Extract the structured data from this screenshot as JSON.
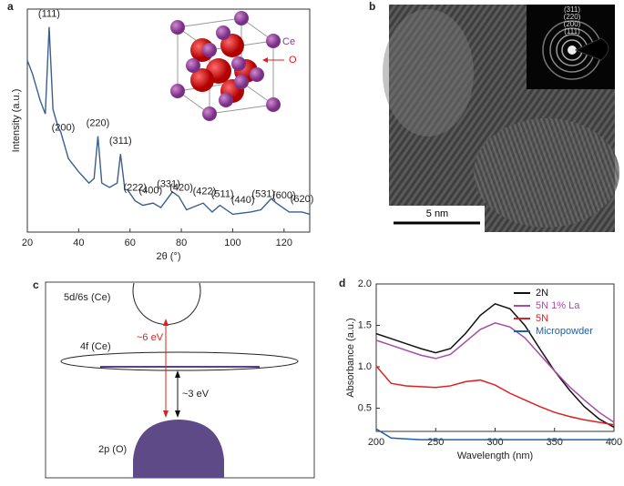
{
  "chart_data": [
    {
      "type": "line",
      "panel_label": "a",
      "xlabel": "2θ (°)",
      "ylabel": "Intensity (a.u.)",
      "x": [
        20,
        22,
        25,
        27,
        28.5,
        30,
        32,
        33,
        34,
        36,
        40,
        44,
        46,
        47.5,
        49,
        52,
        55,
        56.3,
        58,
        59,
        62,
        65,
        69,
        72,
        76.5,
        79,
        82,
        88.5,
        92,
        95,
        100,
        107,
        111,
        115,
        117,
        122,
        127,
        130
      ],
      "series": [
        {
          "color": "#3b5f8c",
          "values": [
            77,
            71,
            59,
            53,
            92,
            55,
            47,
            45,
            41,
            33,
            27,
            22,
            24,
            43,
            22,
            20,
            22,
            35,
            19,
            19,
            14,
            12,
            13,
            11,
            18,
            16,
            10,
            13,
            9,
            12,
            8,
            9,
            10,
            15,
            13,
            9,
            9,
            8
          ]
        }
      ],
      "xlim": [
        20,
        130
      ],
      "ylim": [
        0,
        100
      ],
      "xticks": [
        20,
        40,
        60,
        80,
        100,
        120
      ],
      "annotations": [
        {
          "text": "(111)",
          "x": 28.5
        },
        {
          "text": "(200)",
          "x": 34
        },
        {
          "text": "(220)",
          "x": 47.5
        },
        {
          "text": "(311)",
          "x": 56.3
        },
        {
          "text": "(222)",
          "x": 62
        },
        {
          "text": "(400)",
          "x": 68
        },
        {
          "text": "(331)",
          "x": 75
        },
        {
          "text": "(420)",
          "x": 80
        },
        {
          "text": "(422)",
          "x": 89
        },
        {
          "text": "(511)",
          "x": 96
        },
        {
          "text": "(440)",
          "x": 104
        },
        {
          "text": "(531)",
          "x": 112
        },
        {
          "text": "(600)",
          "x": 120
        },
        {
          "text": "(620)",
          "x": 127
        }
      ],
      "inset_labels": {
        "ce": "Ce",
        "o": "O"
      }
    },
    {
      "type": "line",
      "panel_label": "d",
      "xlabel": "Wavelength (nm)",
      "ylabel": "Absorbance (a.u.)",
      "x": [
        200,
        212.5,
        225,
        237.5,
        250,
        262.5,
        275,
        287.5,
        300,
        312.5,
        325,
        337.5,
        350,
        362.5,
        375,
        387.5,
        400
      ],
      "series": [
        {
          "name": "2N",
          "color": "#111111",
          "values": [
            1.4,
            1.34,
            1.28,
            1.22,
            1.17,
            1.22,
            1.4,
            1.62,
            1.76,
            1.7,
            1.5,
            1.22,
            0.95,
            0.72,
            0.52,
            0.37,
            0.27
          ]
        },
        {
          "name": "5N 1% La",
          "color": "#a64ca6",
          "values": [
            1.32,
            1.26,
            1.2,
            1.14,
            1.1,
            1.15,
            1.3,
            1.45,
            1.53,
            1.48,
            1.35,
            1.15,
            0.95,
            0.76,
            0.6,
            0.45,
            0.33
          ]
        },
        {
          "name": "5N",
          "color": "#e02020",
          "values": [
            1.01,
            0.8,
            0.77,
            0.76,
            0.75,
            0.77,
            0.82,
            0.84,
            0.78,
            0.68,
            0.6,
            0.52,
            0.45,
            0.4,
            0.36,
            0.33,
            0.3
          ]
        },
        {
          "name": "Micropowder",
          "color": "#1f5fa8",
          "values": [
            0.25,
            0.14,
            0.13,
            0.12,
            0.12,
            0.12,
            0.12,
            0.12,
            0.12,
            0.12,
            0.12,
            0.12,
            0.12,
            0.12,
            0.12,
            0.12,
            0.12
          ]
        }
      ],
      "xlim": [
        200,
        400
      ],
      "ylim": [
        0.22,
        2.0
      ],
      "xticks": [
        200,
        250,
        300,
        350,
        400
      ],
      "yticks": [
        0.5,
        {
          "value": 1.0,
          "label": "1.0"
        },
        1.5,
        {
          "value": 2.0,
          "label": "2.0"
        }
      ],
      "legend": "upper right"
    }
  ],
  "panel_b": {
    "panel_label": "b",
    "scale_bar": "5 nm",
    "rings": [
      "(311)",
      "(220)",
      "(200)",
      "(111)"
    ]
  },
  "panel_c": {
    "panel_label": "c",
    "band_5d6s": "5d/6s (Ce)",
    "band_4f": "4f (Ce)",
    "band_2p": "2p (O)",
    "gap_6": "~6 eV",
    "gap_3": "~3 eV"
  }
}
